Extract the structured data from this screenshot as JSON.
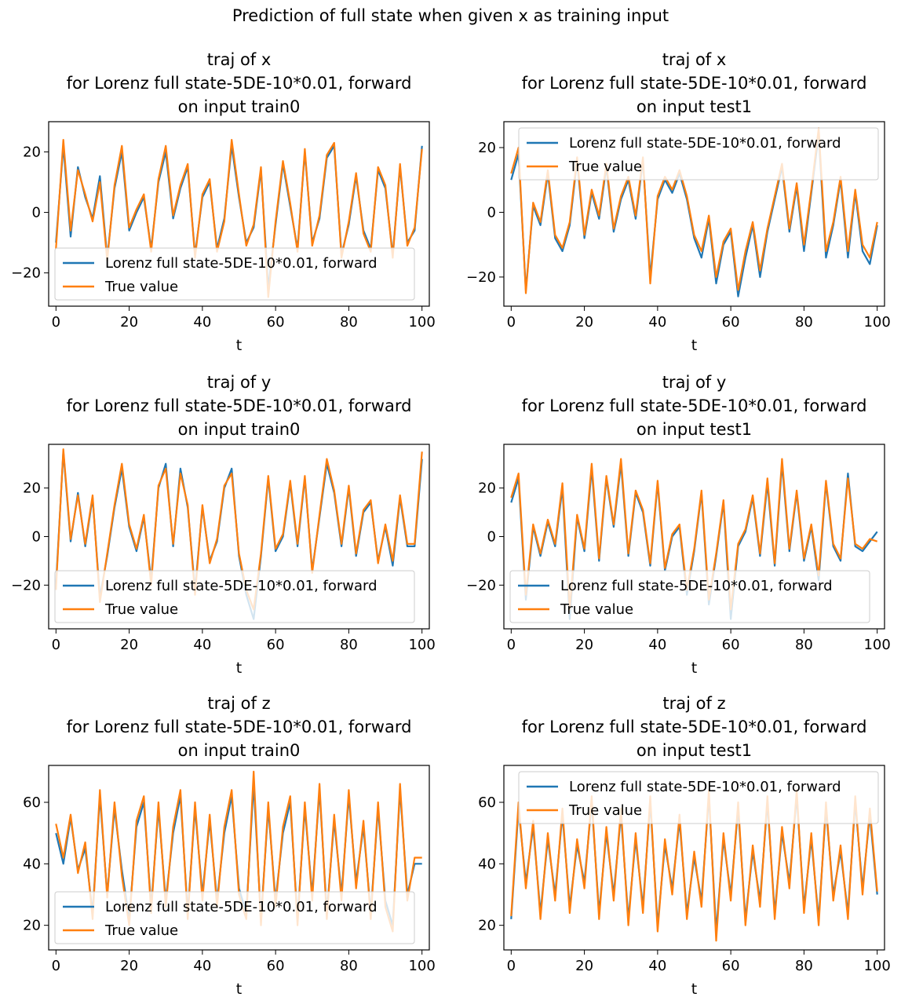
{
  "suptitle": "Prediction of full state when given x as training input",
  "colors": {
    "model": "#1f77b4",
    "truth": "#ff7f0e",
    "axis": "#000000"
  },
  "chart_data": [
    {
      "type": "line",
      "title": [
        "traj of x",
        "for Lorenz full state-5DE-10*0.01, forward",
        "on input train0"
      ],
      "xlabel": "t",
      "ylabel": "",
      "xlim": [
        -2,
        102
      ],
      "ylim": [
        -31,
        30
      ],
      "xticks": [
        0,
        20,
        40,
        60,
        80,
        100
      ],
      "yticks": [
        -20,
        0,
        20
      ],
      "legend_position": "lower-left",
      "x": [
        0,
        2,
        4,
        6,
        8,
        10,
        12,
        14,
        16,
        18,
        20,
        22,
        24,
        26,
        28,
        30,
        32,
        34,
        36,
        38,
        40,
        42,
        44,
        46,
        48,
        50,
        52,
        54,
        56,
        58,
        60,
        62,
        64,
        66,
        68,
        70,
        72,
        74,
        76,
        78,
        80,
        82,
        84,
        86,
        88,
        90,
        92,
        94,
        96,
        98,
        100
      ],
      "series": [
        {
          "name": "Lorenz full state-5DE-10*0.01, forward",
          "values": [
            -10,
            22,
            -8,
            15,
            5,
            -2,
            12,
            -15,
            8,
            20,
            -6,
            0,
            5,
            -12,
            10,
            20,
            -2,
            8,
            15,
            -14,
            5,
            10,
            -12,
            -2,
            22,
            5,
            -10,
            -5,
            14,
            -25,
            -4,
            16,
            2,
            -12,
            20,
            -10,
            -2,
            18,
            22,
            -14,
            -4,
            12,
            -6,
            -12,
            14,
            8,
            -14,
            15,
            -10,
            -6,
            22
          ]
        },
        {
          "name": "True value",
          "values": [
            -12,
            24,
            -6,
            14,
            6,
            -3,
            10,
            -16,
            9,
            22,
            -5,
            1,
            6,
            -13,
            11,
            22,
            -1,
            9,
            16,
            -15,
            6,
            11,
            -13,
            -3,
            24,
            6,
            -11,
            -4,
            15,
            -28,
            -3,
            17,
            3,
            -13,
            21,
            -11,
            -1,
            19,
            23,
            -15,
            -3,
            13,
            -7,
            -13,
            15,
            9,
            -15,
            16,
            -11,
            -5,
            21
          ]
        }
      ]
    },
    {
      "type": "line",
      "title": [
        "traj of x",
        "for Lorenz full state-5DE-10*0.01, forward",
        "on input test1"
      ],
      "xlabel": "t",
      "ylabel": "",
      "xlim": [
        -2,
        102
      ],
      "ylim": [
        -29,
        28
      ],
      "xticks": [
        0,
        20,
        40,
        60,
        80,
        100
      ],
      "yticks": [
        -20,
        0,
        20
      ],
      "legend_position": "upper-right",
      "x": [
        0,
        2,
        4,
        6,
        8,
        10,
        12,
        14,
        16,
        18,
        20,
        22,
        24,
        26,
        28,
        30,
        32,
        34,
        36,
        38,
        40,
        42,
        44,
        46,
        48,
        50,
        52,
        54,
        56,
        58,
        60,
        62,
        64,
        66,
        68,
        70,
        72,
        74,
        76,
        78,
        80,
        82,
        84,
        86,
        88,
        90,
        92,
        94,
        96,
        98,
        100
      ],
      "series": [
        {
          "name": "Lorenz full state-5DE-10*0.01, forward",
          "values": [
            10,
            18,
            -24,
            2,
            -4,
            12,
            -8,
            -12,
            -4,
            16,
            -8,
            6,
            -2,
            14,
            -6,
            4,
            10,
            -2,
            16,
            -20,
            4,
            10,
            6,
            12,
            4,
            -8,
            -14,
            -2,
            -22,
            -10,
            -6,
            -26,
            -14,
            -4,
            -20,
            -6,
            4,
            14,
            -6,
            8,
            -12,
            6,
            24,
            -14,
            -4,
            10,
            -14,
            6,
            -12,
            -16,
            -4
          ]
        },
        {
          "name": "True value",
          "values": [
            12,
            20,
            -25,
            3,
            -3,
            13,
            -7,
            -11,
            -3,
            17,
            -7,
            7,
            -1,
            15,
            -5,
            5,
            11,
            -1,
            17,
            -22,
            5,
            11,
            7,
            13,
            5,
            -7,
            -12,
            -1,
            -20,
            -9,
            -5,
            -24,
            -12,
            -3,
            -18,
            -5,
            5,
            15,
            -5,
            9,
            -10,
            7,
            26,
            -12,
            -3,
            11,
            -12,
            7,
            -10,
            -14,
            -3
          ]
        }
      ]
    },
    {
      "type": "line",
      "title": [
        "traj of y",
        "for Lorenz full state-5DE-10*0.01, forward",
        "on input train0"
      ],
      "xlabel": "t",
      "ylabel": "",
      "xlim": [
        -2,
        102
      ],
      "ylim": [
        -38,
        38
      ],
      "xticks": [
        0,
        20,
        40,
        60,
        80,
        100
      ],
      "yticks": [
        -20,
        0,
        20
      ],
      "legend_position": "lower-left",
      "x": [
        0,
        2,
        4,
        6,
        8,
        10,
        12,
        14,
        16,
        18,
        20,
        22,
        24,
        26,
        28,
        30,
        32,
        34,
        36,
        38,
        40,
        42,
        44,
        46,
        48,
        50,
        52,
        54,
        56,
        58,
        60,
        62,
        64,
        66,
        68,
        70,
        72,
        74,
        76,
        78,
        80,
        82,
        84,
        86,
        88,
        90,
        92,
        94,
        96,
        98,
        100
      ],
      "series": [
        {
          "name": "Lorenz full state-5DE-10*0.01, forward",
          "values": [
            -20,
            35,
            -2,
            18,
            -4,
            16,
            -25,
            -8,
            12,
            28,
            4,
            -6,
            8,
            -18,
            20,
            30,
            -4,
            28,
            12,
            -22,
            12,
            -10,
            -2,
            20,
            28,
            -8,
            -24,
            -34,
            -8,
            24,
            -6,
            0,
            22,
            -4,
            24,
            -14,
            8,
            30,
            18,
            -4,
            20,
            -8,
            10,
            14,
            -10,
            4,
            -12,
            16,
            -4,
            -4,
            32
          ]
        },
        {
          "name": "True value",
          "values": [
            -22,
            36,
            -1,
            17,
            -3,
            17,
            -27,
            -7,
            13,
            30,
            5,
            -5,
            9,
            -20,
            21,
            28,
            -3,
            26,
            13,
            -24,
            13,
            -11,
            -1,
            21,
            26,
            -7,
            -22,
            -30,
            -7,
            25,
            -5,
            1,
            23,
            -3,
            25,
            -15,
            9,
            32,
            19,
            -3,
            21,
            -7,
            11,
            15,
            -11,
            5,
            -10,
            17,
            -3,
            -3,
            35
          ]
        }
      ]
    },
    {
      "type": "line",
      "title": [
        "traj of y",
        "for Lorenz full state-5DE-10*0.01, forward",
        "on input test1"
      ],
      "xlabel": "t",
      "ylabel": "",
      "xlim": [
        -2,
        102
      ],
      "ylim": [
        -38,
        38
      ],
      "xticks": [
        0,
        20,
        40,
        60,
        80,
        100
      ],
      "yticks": [
        -20,
        0,
        20
      ],
      "legend_position": "lower-left",
      "x": [
        0,
        2,
        4,
        6,
        8,
        10,
        12,
        14,
        16,
        18,
        20,
        22,
        24,
        26,
        28,
        30,
        32,
        34,
        36,
        38,
        40,
        42,
        44,
        46,
        48,
        50,
        52,
        54,
        56,
        58,
        60,
        62,
        64,
        66,
        68,
        70,
        72,
        74,
        76,
        78,
        80,
        82,
        84,
        86,
        88,
        90,
        92,
        94,
        96,
        98,
        100
      ],
      "series": [
        {
          "name": "Lorenz full state-5DE-10*0.01, forward",
          "values": [
            14,
            24,
            -26,
            4,
            -8,
            6,
            -4,
            20,
            -34,
            8,
            -6,
            28,
            -10,
            24,
            4,
            30,
            -8,
            18,
            10,
            -12,
            22,
            -14,
            0,
            4,
            -24,
            -6,
            18,
            -28,
            -8,
            14,
            -34,
            -4,
            2,
            16,
            -8,
            22,
            -12,
            30,
            -6,
            18,
            -10,
            4,
            -18,
            22,
            -4,
            -10,
            26,
            -4,
            -6,
            -2,
            2
          ]
        },
        {
          "name": "True value",
          "values": [
            16,
            26,
            -24,
            5,
            -7,
            7,
            -3,
            22,
            -30,
            9,
            -5,
            30,
            -9,
            25,
            5,
            32,
            -7,
            19,
            11,
            -11,
            23,
            -13,
            1,
            5,
            -22,
            -5,
            19,
            -26,
            -7,
            15,
            -30,
            -3,
            3,
            17,
            -7,
            24,
            -11,
            32,
            -5,
            19,
            -9,
            5,
            -16,
            23,
            -3,
            -9,
            24,
            -3,
            -5,
            -1,
            -2
          ]
        }
      ]
    },
    {
      "type": "line",
      "title": [
        "traj of z",
        "for Lorenz full state-5DE-10*0.01, forward",
        "on input train0"
      ],
      "xlabel": "t",
      "ylabel": "",
      "xlim": [
        -2,
        102
      ],
      "ylim": [
        12,
        72
      ],
      "xticks": [
        0,
        20,
        40,
        60,
        80,
        100
      ],
      "yticks": [
        20,
        40,
        60
      ],
      "legend_position": "lower-left",
      "x": [
        0,
        2,
        4,
        6,
        8,
        10,
        12,
        14,
        16,
        18,
        20,
        22,
        24,
        26,
        28,
        30,
        32,
        34,
        36,
        38,
        40,
        42,
        44,
        46,
        48,
        50,
        52,
        54,
        56,
        58,
        60,
        62,
        64,
        66,
        68,
        70,
        72,
        74,
        76,
        78,
        80,
        82,
        84,
        86,
        88,
        90,
        92,
        94,
        96,
        98,
        100
      ],
      "series": [
        {
          "name": "Lorenz full state-5DE-10*0.01, forward",
          "values": [
            50,
            40,
            55,
            38,
            45,
            24,
            62,
            30,
            58,
            38,
            22,
            52,
            60,
            26,
            58,
            28,
            50,
            62,
            24,
            58,
            30,
            54,
            28,
            50,
            62,
            32,
            24,
            66,
            22,
            58,
            28,
            50,
            60,
            22,
            58,
            30,
            64,
            24,
            54,
            30,
            62,
            34,
            52,
            24,
            58,
            28,
            20,
            64,
            30,
            40,
            40
          ]
        },
        {
          "name": "True value",
          "values": [
            53,
            42,
            56,
            37,
            47,
            22,
            64,
            29,
            60,
            36,
            20,
            54,
            62,
            24,
            60,
            26,
            52,
            64,
            22,
            60,
            28,
            56,
            26,
            52,
            64,
            30,
            22,
            70,
            20,
            60,
            26,
            52,
            62,
            20,
            60,
            28,
            66,
            22,
            56,
            28,
            64,
            32,
            54,
            22,
            60,
            26,
            18,
            66,
            28,
            42,
            42
          ]
        }
      ]
    },
    {
      "type": "line",
      "title": [
        "traj of z",
        "for Lorenz full state-5DE-10*0.01, forward",
        "on input test1"
      ],
      "xlabel": "t",
      "ylabel": "",
      "xlim": [
        -2,
        102
      ],
      "ylim": [
        12,
        72
      ],
      "xticks": [
        0,
        20,
        40,
        60,
        80,
        100
      ],
      "yticks": [
        20,
        40,
        60
      ],
      "legend_position": "upper-right",
      "x": [
        0,
        2,
        4,
        6,
        8,
        10,
        12,
        14,
        16,
        18,
        20,
        22,
        24,
        26,
        28,
        30,
        32,
        34,
        36,
        38,
        40,
        42,
        44,
        46,
        48,
        50,
        52,
        54,
        56,
        58,
        60,
        62,
        64,
        66,
        68,
        70,
        72,
        74,
        76,
        78,
        80,
        82,
        84,
        86,
        88,
        90,
        92,
        94,
        96,
        98,
        100
      ],
      "series": [
        {
          "name": "Lorenz full state-5DE-10*0.01, forward",
          "values": [
            22,
            58,
            34,
            52,
            24,
            48,
            30,
            56,
            26,
            46,
            34,
            60,
            24,
            50,
            30,
            56,
            22,
            48,
            26,
            60,
            20,
            46,
            32,
            54,
            24,
            42,
            28,
            62,
            18,
            48,
            30,
            58,
            22,
            44,
            28,
            60,
            24,
            50,
            34,
            62,
            26,
            48,
            22,
            58,
            30,
            44,
            24,
            60,
            32,
            56,
            30
          ]
        },
        {
          "name": "True value",
          "values": [
            23,
            60,
            32,
            54,
            22,
            50,
            28,
            58,
            24,
            48,
            32,
            62,
            22,
            52,
            28,
            58,
            20,
            50,
            24,
            62,
            18,
            48,
            30,
            56,
            22,
            44,
            26,
            64,
            15,
            50,
            28,
            60,
            20,
            46,
            26,
            62,
            22,
            52,
            32,
            64,
            24,
            50,
            20,
            60,
            28,
            46,
            22,
            62,
            30,
            58,
            31
          ]
        }
      ]
    }
  ]
}
